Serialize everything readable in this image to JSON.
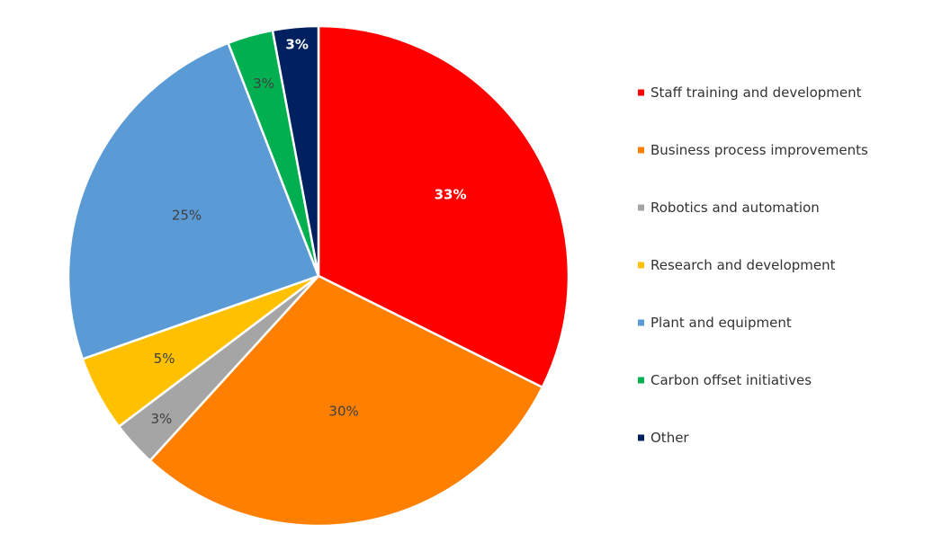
{
  "chart_data": {
    "type": "pie",
    "categories": [
      "Staff training and development",
      "Business process improvements",
      "Robotics and automation",
      "Research and development",
      "Plant and equipment",
      "Carbon offset initiatives",
      "Other"
    ],
    "values": [
      33,
      30,
      3,
      5,
      25,
      3,
      3
    ],
    "labels": [
      "33%",
      "30%",
      "3%",
      "5%",
      "25%",
      "3%",
      "3%"
    ],
    "colors": [
      "#ff0000",
      "#ff8000",
      "#a5a5a5",
      "#ffc000",
      "#5b9bd5",
      "#00b050",
      "#002060"
    ],
    "label_colors": [
      "#ffffff",
      "#404040",
      "#404040",
      "#404040",
      "#404040",
      "#404040",
      "#ffffff"
    ],
    "label_bold": [
      true,
      false,
      false,
      false,
      false,
      false,
      true
    ],
    "start_angle_deg": 0,
    "direction": "clockwise",
    "legend_position": "right",
    "title": ""
  }
}
